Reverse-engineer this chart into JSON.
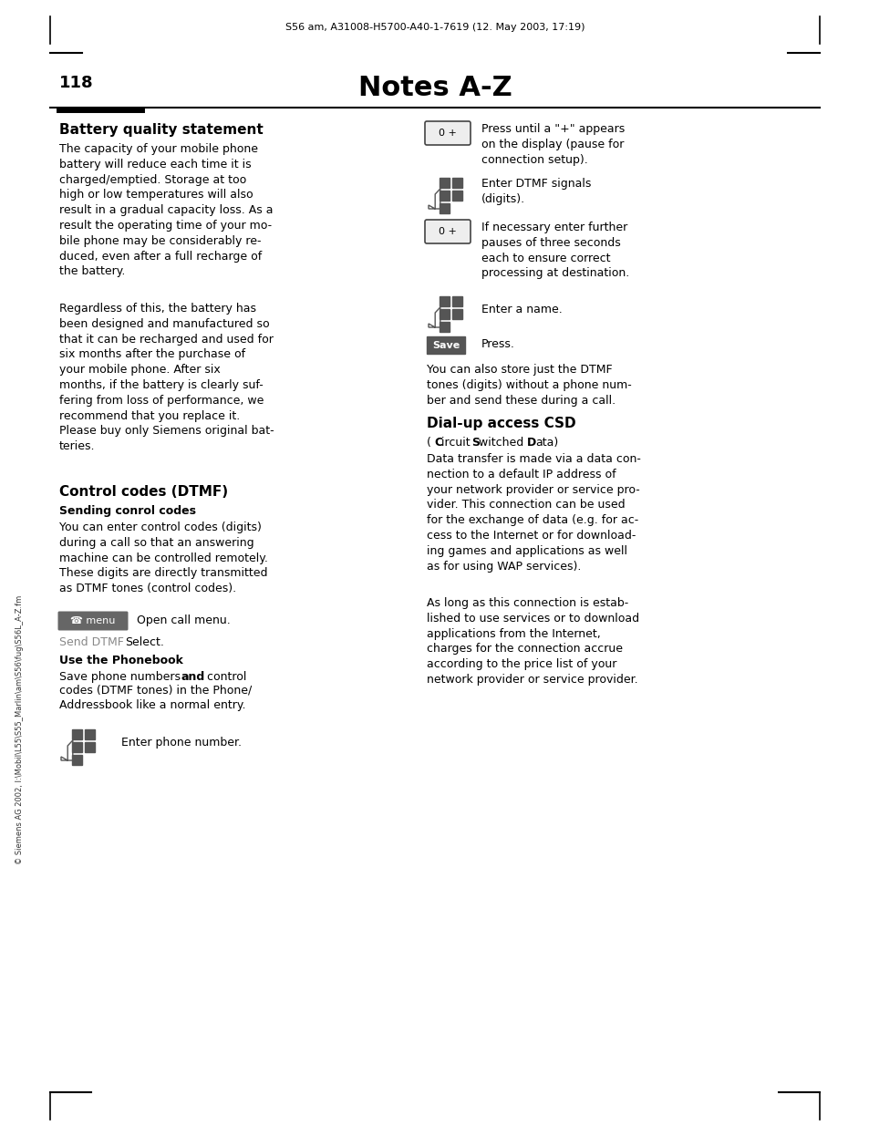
{
  "bg_color": "#ffffff",
  "header_text": "S56 am, A31008-H5700-A40-1-7619 (12. May 2003, 17:19)",
  "page_number": "118",
  "page_title": "Notes A-Z",
  "sidebar_text": "© Siemens AG 2002, I:\\Mobil\\L55\\S55_Marlin\\am\\S56\\fug\\S56L_A-Z.fm",
  "font_size_body": 9.0,
  "font_size_heading": 11.0,
  "font_size_subheading": 9.0,
  "font_size_header": 8.0,
  "font_size_page_num": 13.0,
  "font_size_title": 22.0
}
